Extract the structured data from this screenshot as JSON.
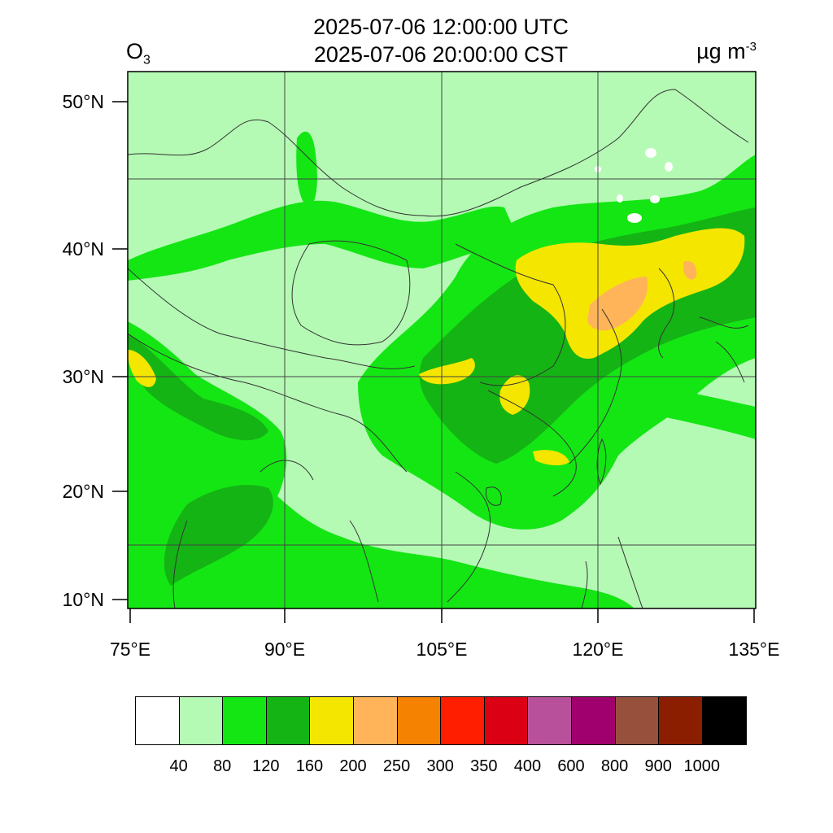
{
  "title": {
    "utc": "2025-07-06 12:00:00 UTC",
    "cst": "2025-07-06 20:00:00 CST"
  },
  "species": {
    "main": "O",
    "sub": "3"
  },
  "units": {
    "main": "µg m",
    "sup": "-3"
  },
  "lat_labels": [
    "50°N",
    "40°N",
    "30°N",
    "20°N",
    "10°N"
  ],
  "lon_labels": [
    "75°E",
    "90°E",
    "105°E",
    "120°E",
    "135°E"
  ],
  "colorbar": {
    "colors": [
      "#ffffff",
      "#b4fab4",
      "#14e614",
      "#14b414",
      "#f5e600",
      "#ffb45a",
      "#f58200",
      "#ff1e00",
      "#dc0014",
      "#b9509b",
      "#a0006e",
      "#96503c",
      "#8c1e00",
      "#000000"
    ],
    "labels": [
      "40",
      "80",
      "120",
      "160",
      "200",
      "250",
      "300",
      "350",
      "400",
      "600",
      "800",
      "900",
      "1000"
    ]
  }
}
